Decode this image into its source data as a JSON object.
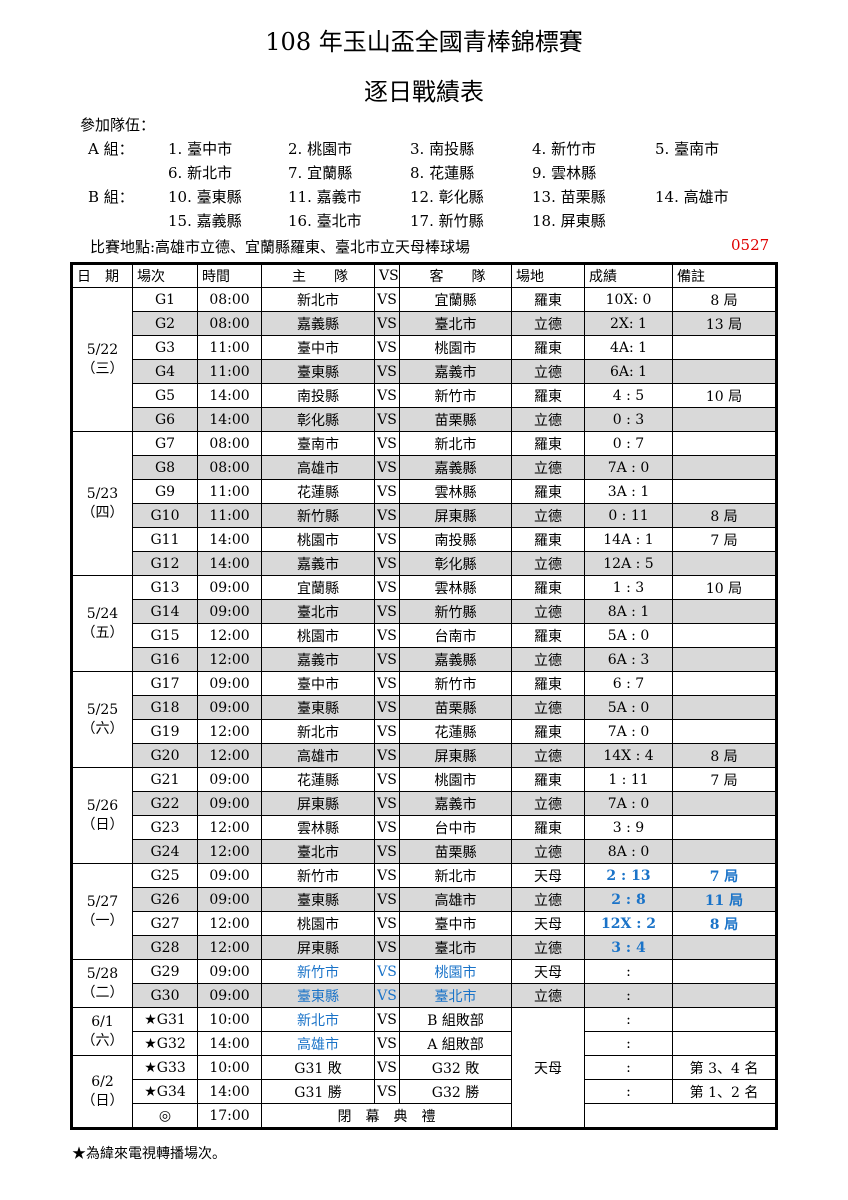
{
  "title": "108 年玉山盃全國青棒錦標賽",
  "subtitle": "逐日戰績表",
  "participants_label": "參加隊伍：",
  "groups": [
    {
      "label": "A 組：",
      "teams": [
        "1. 臺中市",
        "2. 桃園市",
        "3. 南投縣",
        "4. 新竹市",
        "5. 臺南市",
        "6. 新北市",
        "7. 宜蘭縣",
        "8. 花蓮縣",
        "9. 雲林縣"
      ]
    },
    {
      "label": "B 組：",
      "teams": [
        "10. 臺東縣",
        "11. 嘉義市",
        "12. 彰化縣",
        "13. 苗栗縣",
        "14. 高雄市",
        "15. 嘉義縣",
        "16. 臺北市",
        "17. 新竹縣",
        "18. 屏東縣"
      ]
    }
  ],
  "venues_text": "比賽地點:高雄市立德、宜蘭縣羅東、臺北市立天母棒球場",
  "doc_code": "0527",
  "headers": [
    "日　期",
    "場次",
    "時間",
    "主　　隊",
    "VS",
    "客　　隊",
    "場地",
    "成績",
    "備註"
  ],
  "days": [
    {
      "date": "5/22",
      "weekday": "（三）",
      "games": [
        [
          "G1",
          "08:00",
          "新北市",
          "VS",
          "宜蘭縣",
          "羅東",
          "10X: 0",
          "8 局"
        ],
        [
          "G2",
          "08:00",
          "嘉義縣",
          "VS",
          "臺北市",
          "立德",
          "2X: 1",
          "13 局"
        ],
        [
          "G3",
          "11:00",
          "臺中市",
          "VS",
          "桃園市",
          "羅東",
          "4A: 1",
          ""
        ],
        [
          "G4",
          "11:00",
          "臺東縣",
          "VS",
          "嘉義市",
          "立德",
          "6A: 1",
          ""
        ],
        [
          "G5",
          "14:00",
          "南投縣",
          "VS",
          "新竹市",
          "羅東",
          "4 : 5",
          "10 局"
        ],
        [
          "G6",
          "14:00",
          "彰化縣",
          "VS",
          "苗栗縣",
          "立德",
          "0 : 3",
          ""
        ]
      ]
    },
    {
      "date": "5/23",
      "weekday": "（四）",
      "games": [
        [
          "G7",
          "08:00",
          "臺南市",
          "VS",
          "新北市",
          "羅東",
          "0 : 7",
          ""
        ],
        [
          "G8",
          "08:00",
          "高雄市",
          "VS",
          "嘉義縣",
          "立德",
          "7A : 0",
          ""
        ],
        [
          "G9",
          "11:00",
          "花蓮縣",
          "VS",
          "雲林縣",
          "羅東",
          "3A : 1",
          ""
        ],
        [
          "G10",
          "11:00",
          "新竹縣",
          "VS",
          "屏東縣",
          "立德",
          "0 : 11",
          "8 局"
        ],
        [
          "G11",
          "14:00",
          "桃園市",
          "VS",
          "南投縣",
          "羅東",
          "14A : 1",
          "7 局"
        ],
        [
          "G12",
          "14:00",
          "嘉義市",
          "VS",
          "彰化縣",
          "立德",
          "12A : 5",
          ""
        ]
      ]
    },
    {
      "date": "5/24",
      "weekday": "（五）",
      "games": [
        [
          "G13",
          "09:00",
          "宜蘭縣",
          "VS",
          "雲林縣",
          "羅東",
          "1 : 3",
          "10 局"
        ],
        [
          "G14",
          "09:00",
          "臺北市",
          "VS",
          "新竹縣",
          "立德",
          "8A : 1",
          ""
        ],
        [
          "G15",
          "12:00",
          "桃園市",
          "VS",
          "台南市",
          "羅東",
          "5A : 0",
          ""
        ],
        [
          "G16",
          "12:00",
          "嘉義市",
          "VS",
          "嘉義縣",
          "立德",
          "6A : 3",
          ""
        ]
      ]
    },
    {
      "date": "5/25",
      "weekday": "（六）",
      "games": [
        [
          "G17",
          "09:00",
          "臺中市",
          "VS",
          "新竹市",
          "羅東",
          "6 : 7",
          ""
        ],
        [
          "G18",
          "09:00",
          "臺東縣",
          "VS",
          "苗栗縣",
          "立德",
          "5A : 0",
          ""
        ],
        [
          "G19",
          "12:00",
          "新北市",
          "VS",
          "花蓮縣",
          "羅東",
          "7A : 0",
          ""
        ],
        [
          "G20",
          "12:00",
          "高雄市",
          "VS",
          "屏東縣",
          "立德",
          "14X : 4",
          "8 局"
        ]
      ]
    },
    {
      "date": "5/26",
      "weekday": "（日）",
      "games": [
        [
          "G21",
          "09:00",
          "花蓮縣",
          "VS",
          "桃園市",
          "羅東",
          "1 : 11",
          "7 局"
        ],
        [
          "G22",
          "09:00",
          "屏東縣",
          "VS",
          "嘉義市",
          "立德",
          "7A : 0",
          ""
        ],
        [
          "G23",
          "12:00",
          "雲林縣",
          "VS",
          "台中市",
          "羅東",
          "3 : 9",
          ""
        ],
        [
          "G24",
          "12:00",
          "臺北市",
          "VS",
          "苗栗縣",
          "立德",
          "8A : 0",
          ""
        ]
      ]
    },
    {
      "date": "5/27",
      "weekday": "（一）",
      "games": [
        [
          "G25",
          "09:00",
          "新竹市",
          "VS",
          "新北市",
          "天母",
          "2 : 13",
          "7 局"
        ],
        [
          "G26",
          "09:00",
          "臺東縣",
          "VS",
          "高雄市",
          "立德",
          "2 : 8",
          "11 局"
        ],
        [
          "G27",
          "12:00",
          "桃園市",
          "VS",
          "臺中市",
          "天母",
          "12X : 2",
          "8 局"
        ],
        [
          "G28",
          "12:00",
          "屏東縣",
          "VS",
          "臺北市",
          "立德",
          "3 : 4",
          ""
        ]
      ]
    },
    {
      "date": "5/28",
      "weekday": "（二）",
      "games": [
        [
          "G29",
          "09:00",
          "新竹市",
          "VS",
          "桃園市",
          "天母",
          ":",
          ""
        ],
        [
          "G30",
          "09:00",
          "臺東縣",
          "VS",
          "臺北市",
          "立德",
          ":",
          ""
        ]
      ]
    },
    {
      "date": "6/1",
      "weekday": "（六）",
      "games": [
        [
          "★G31",
          "10:00",
          "新北市",
          "VS",
          "B 組敗部",
          "",
          ":",
          ""
        ],
        [
          "★G32",
          "14:00",
          "高雄市",
          "VS",
          "A 組敗部",
          "",
          ":",
          ""
        ]
      ]
    },
    {
      "date": "6/2",
      "weekday": "（日）",
      "games": [
        [
          "★G33",
          "10:00",
          "G31 敗",
          "VS",
          "G32 敗",
          "",
          ":",
          "第 3、4 名"
        ],
        [
          "★G34",
          "14:00",
          "G31 勝",
          "VS",
          "G32 勝",
          "",
          ":",
          "第 1、2 名"
        ]
      ]
    }
  ],
  "final_venue": "天母",
  "ceremony": {
    "mark": "◎",
    "time": "17:00",
    "label": "閉　幕　典　禮"
  },
  "footnote": "★為緯來電視轉播場次。",
  "colors": {
    "highlight": "#1a73c8",
    "code": "#e00000",
    "shade": "#d9d9d9"
  }
}
